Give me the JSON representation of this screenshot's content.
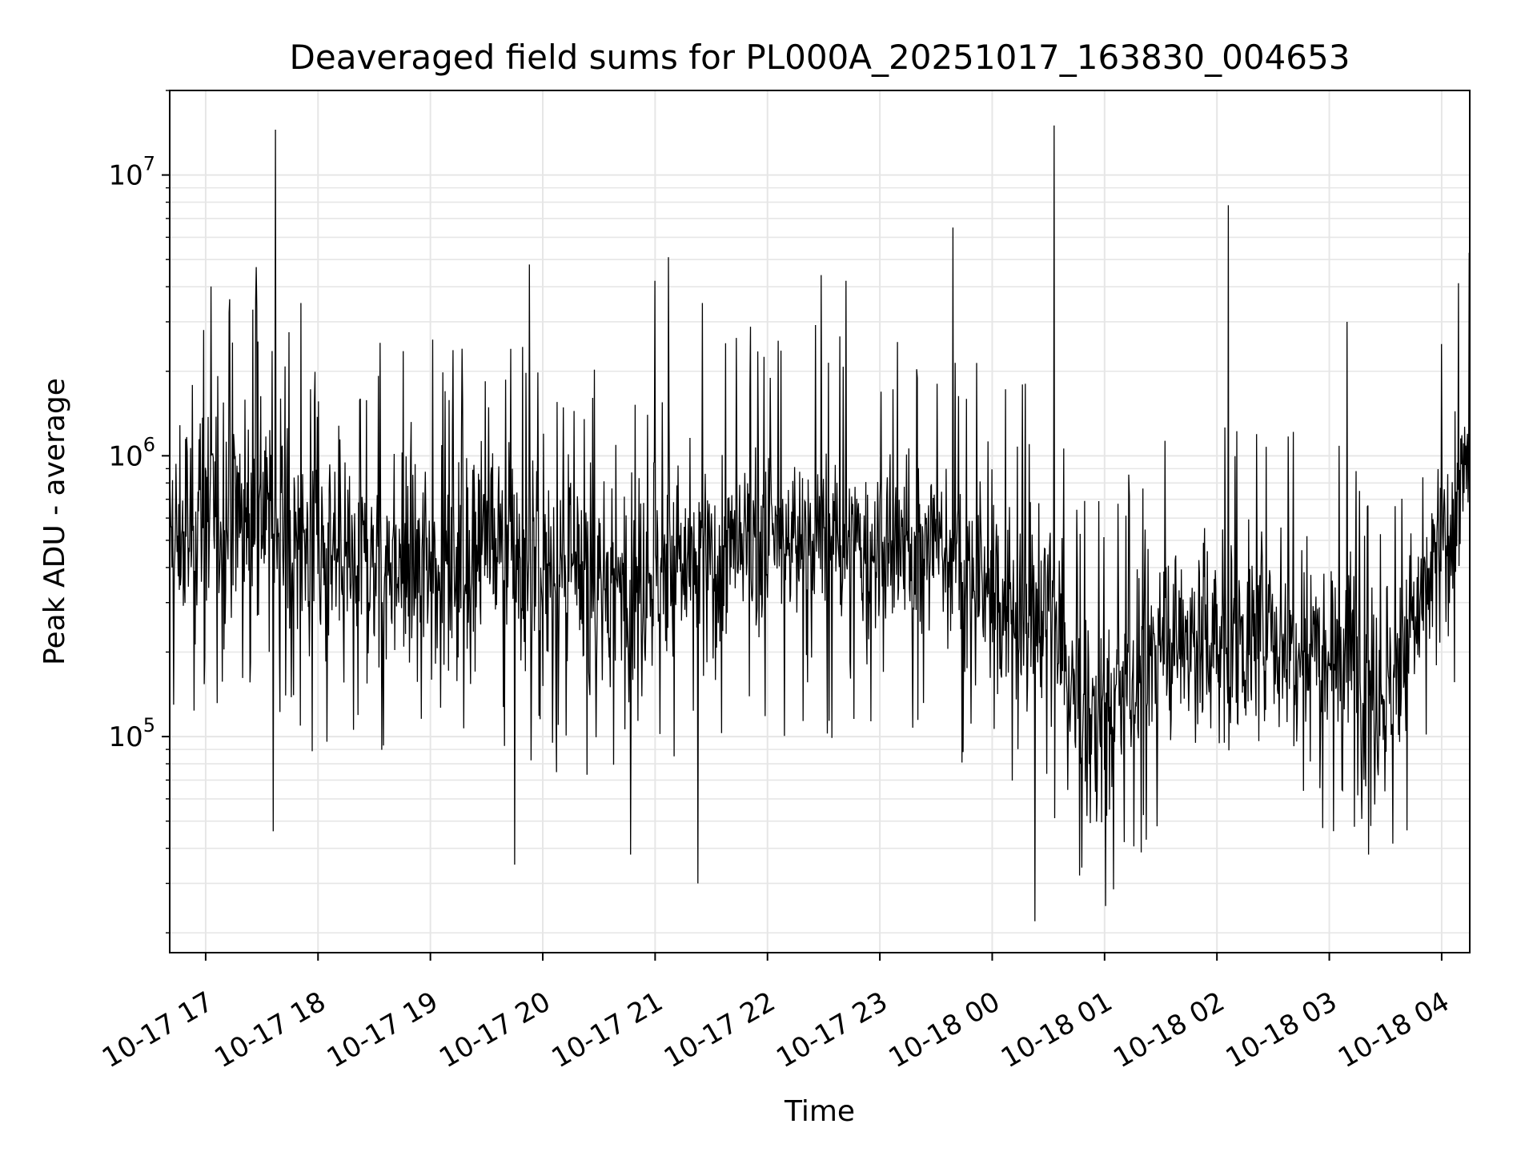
{
  "chart_data": {
    "type": "line",
    "title": "Deaveraged field sums for PL000A_20251017_163830_004653",
    "xlabel": "Time",
    "ylabel": "Peak ADU - average",
    "yscale": "log",
    "ylim": [
      17000,
      20000000
    ],
    "xlim_hours": [
      16.68,
      28.25
    ],
    "grid": true,
    "line_color": "#000000",
    "grid_color": "#e6e6e6",
    "x_ticks": [
      {
        "hour": 17,
        "label": "10-17 17"
      },
      {
        "hour": 18,
        "label": "10-17 18"
      },
      {
        "hour": 19,
        "label": "10-17 19"
      },
      {
        "hour": 20,
        "label": "10-17 20"
      },
      {
        "hour": 21,
        "label": "10-17 21"
      },
      {
        "hour": 22,
        "label": "10-17 22"
      },
      {
        "hour": 23,
        "label": "10-17 23"
      },
      {
        "hour": 24,
        "label": "10-18 00"
      },
      {
        "hour": 25,
        "label": "10-18 01"
      },
      {
        "hour": 26,
        "label": "10-18 02"
      },
      {
        "hour": 27,
        "label": "10-18 03"
      },
      {
        "hour": 28,
        "label": "10-18 04"
      }
    ],
    "y_ticks": [
      {
        "value": 100000,
        "base": "10",
        "exp": "5"
      },
      {
        "value": 1000000,
        "base": "10",
        "exp": "6"
      },
      {
        "value": 10000000,
        "base": "10",
        "exp": "7"
      }
    ],
    "series_profile": [
      {
        "hour": 16.68,
        "median": 450000,
        "spread": 0.55
      },
      {
        "hour": 17.0,
        "median": 650000,
        "spread": 0.55
      },
      {
        "hour": 17.5,
        "median": 650000,
        "spread": 0.55
      },
      {
        "hour": 18.0,
        "median": 420000,
        "spread": 0.55
      },
      {
        "hour": 18.5,
        "median": 420000,
        "spread": 0.5
      },
      {
        "hour": 19.0,
        "median": 420000,
        "spread": 0.5
      },
      {
        "hour": 19.5,
        "median": 500000,
        "spread": 0.55
      },
      {
        "hour": 20.0,
        "median": 380000,
        "spread": 0.55
      },
      {
        "hour": 20.5,
        "median": 330000,
        "spread": 0.55
      },
      {
        "hour": 21.0,
        "median": 400000,
        "spread": 0.5
      },
      {
        "hour": 21.5,
        "median": 400000,
        "spread": 0.45
      },
      {
        "hour": 22.0,
        "median": 500000,
        "spread": 0.45
      },
      {
        "hour": 22.5,
        "median": 500000,
        "spread": 0.45
      },
      {
        "hour": 23.0,
        "median": 420000,
        "spread": 0.45
      },
      {
        "hour": 23.5,
        "median": 500000,
        "spread": 0.4
      },
      {
        "hour": 24.0,
        "median": 300000,
        "spread": 0.45
      },
      {
        "hour": 24.5,
        "median": 280000,
        "spread": 0.5
      },
      {
        "hour": 24.8,
        "median": 110000,
        "spread": 0.45
      },
      {
        "hour": 25.2,
        "median": 140000,
        "spread": 0.45
      },
      {
        "hour": 25.5,
        "median": 230000,
        "spread": 0.5
      },
      {
        "hour": 26.0,
        "median": 220000,
        "spread": 0.5
      },
      {
        "hour": 26.5,
        "median": 230000,
        "spread": 0.5
      },
      {
        "hour": 27.0,
        "median": 230000,
        "spread": 0.5
      },
      {
        "hour": 27.5,
        "median": 140000,
        "spread": 0.5
      },
      {
        "hour": 27.8,
        "median": 280000,
        "spread": 0.45
      },
      {
        "hour": 28.25,
        "median": 900000,
        "spread": 0.4
      }
    ],
    "spikes": [
      {
        "hour": 17.62,
        "value": 14500000
      },
      {
        "hour": 17.45,
        "value": 4700000
      },
      {
        "hour": 17.85,
        "value": 3500000
      },
      {
        "hour": 19.88,
        "value": 4800000
      },
      {
        "hour": 21.12,
        "value": 5100000
      },
      {
        "hour": 21.0,
        "value": 4200000
      },
      {
        "hour": 21.42,
        "value": 3500000
      },
      {
        "hour": 22.48,
        "value": 4400000
      },
      {
        "hour": 22.7,
        "value": 4200000
      },
      {
        "hour": 23.65,
        "value": 6500000
      },
      {
        "hour": 24.55,
        "value": 15000000
      },
      {
        "hour": 26.1,
        "value": 7800000
      },
      {
        "hour": 27.16,
        "value": 3000000
      },
      {
        "hour": 28.0,
        "value": 2500000
      }
    ],
    "dips": [
      {
        "hour": 17.6,
        "value": 46000
      },
      {
        "hour": 19.75,
        "value": 35000
      },
      {
        "hour": 20.78,
        "value": 38000
      },
      {
        "hour": 21.38,
        "value": 30000
      },
      {
        "hour": 24.38,
        "value": 22000
      },
      {
        "hour": 24.78,
        "value": 32000
      },
      {
        "hour": 27.35,
        "value": 38000
      }
    ]
  }
}
